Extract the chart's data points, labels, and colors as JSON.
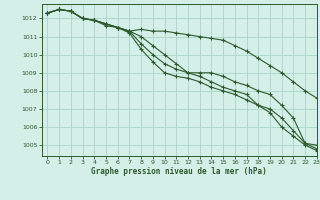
{
  "title": "Graphe pression niveau de la mer (hPa)",
  "xlabel": "Graphe pression niveau de la mer (hPa)",
  "background_color": "#d4eee8",
  "grid_color": "#b0d8cc",
  "line_color": "#2d5a2d",
  "xlim": [
    -0.5,
    23
  ],
  "ylim": [
    1004.4,
    1012.8
  ],
  "yticks": [
    1005,
    1006,
    1007,
    1008,
    1009,
    1010,
    1011,
    1012
  ],
  "xticks": [
    0,
    1,
    2,
    3,
    4,
    5,
    6,
    7,
    8,
    9,
    10,
    11,
    12,
    13,
    14,
    15,
    16,
    17,
    18,
    19,
    20,
    21,
    22,
    23
  ],
  "series": [
    [
      1012.3,
      1012.5,
      1012.4,
      1012.0,
      1011.9,
      1011.6,
      1011.5,
      1011.3,
      1011.4,
      1011.3,
      1011.3,
      1011.2,
      1011.1,
      1011.0,
      1010.9,
      1010.8,
      1010.5,
      1010.2,
      1009.8,
      1009.4,
      1009.0,
      1008.5,
      1008.0,
      1007.6
    ],
    [
      1012.3,
      1012.5,
      1012.4,
      1012.0,
      1011.9,
      1011.7,
      1011.5,
      1011.3,
      1011.0,
      1010.5,
      1010.0,
      1009.5,
      1009.0,
      1009.0,
      1009.0,
      1008.8,
      1008.5,
      1008.3,
      1008.0,
      1007.8,
      1007.2,
      1006.5,
      1005.1,
      1005.0
    ],
    [
      1012.3,
      1012.5,
      1012.4,
      1012.0,
      1011.9,
      1011.7,
      1011.5,
      1011.3,
      1010.6,
      1010.0,
      1009.5,
      1009.2,
      1009.0,
      1008.8,
      1008.5,
      1008.2,
      1008.0,
      1007.8,
      1007.2,
      1007.0,
      1006.5,
      1005.8,
      1005.1,
      1004.8
    ],
    [
      1012.3,
      1012.5,
      1012.4,
      1012.0,
      1011.9,
      1011.7,
      1011.5,
      1011.2,
      1010.3,
      1009.6,
      1009.0,
      1008.8,
      1008.7,
      1008.5,
      1008.2,
      1008.0,
      1007.8,
      1007.5,
      1007.2,
      1006.8,
      1006.0,
      1005.5,
      1005.0,
      1004.7
    ]
  ]
}
